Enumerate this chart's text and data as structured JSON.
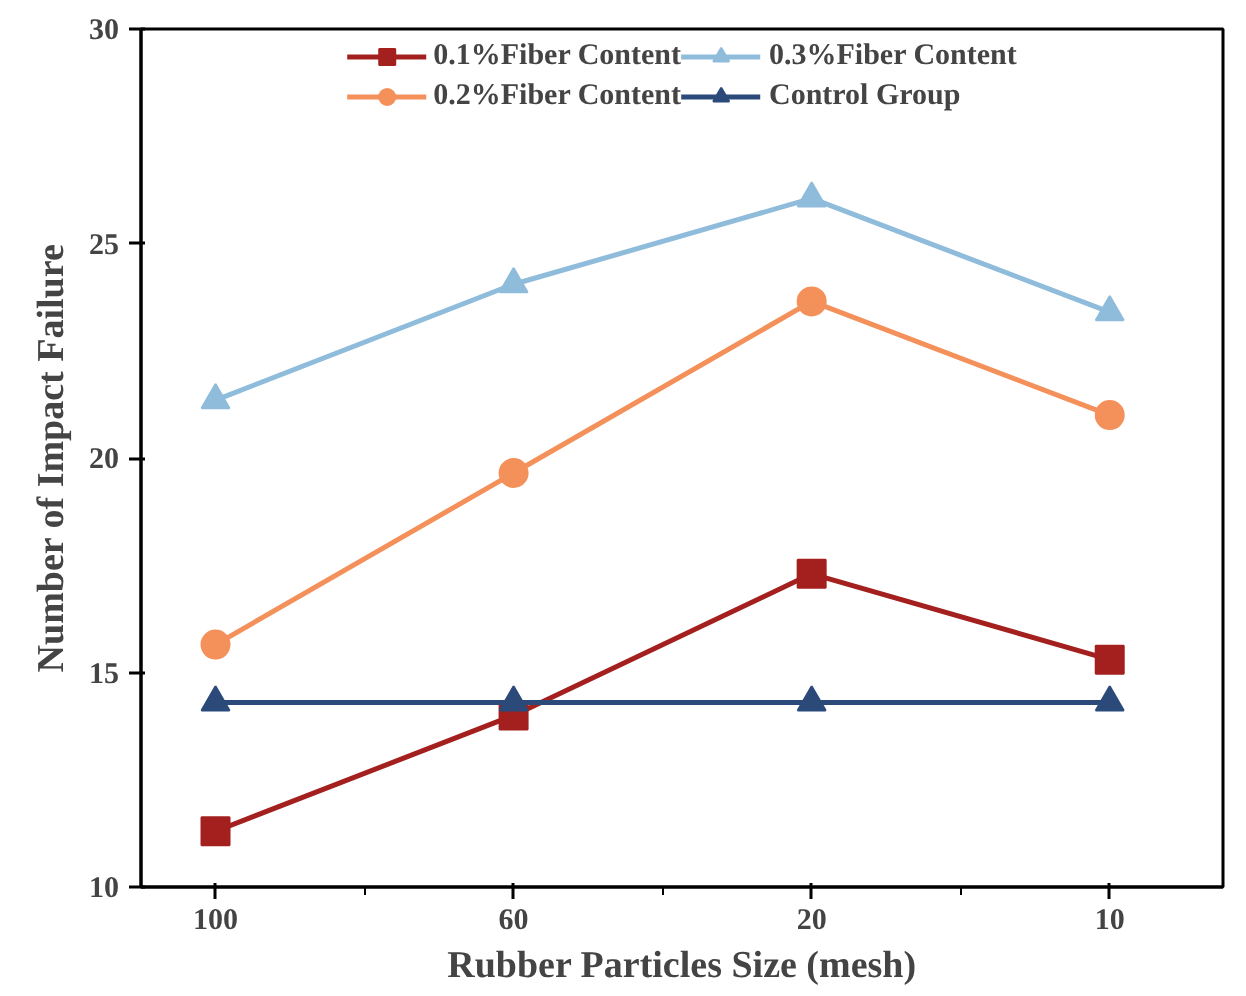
{
  "chart_data": {
    "type": "line",
    "xlabel": "Rubber Particles Size (mesh)",
    "ylabel": "Number of Impact Failure",
    "categories": [
      "100",
      "60",
      "20",
      "10"
    ],
    "series": [
      {
        "name": "0.1%Fiber Content",
        "color": "#a3201f",
        "marker": "square",
        "values": [
          11.3,
          14.0,
          17.3,
          15.3
        ]
      },
      {
        "name": "0.2%Fiber Content",
        "color": "#f4905a",
        "marker": "circle",
        "values": [
          15.65,
          19.65,
          23.65,
          21.0
        ]
      },
      {
        "name": "0.3%Fiber Content",
        "color": "#8fbcdb",
        "marker": "triangle",
        "values": [
          21.35,
          24.05,
          26.05,
          23.4
        ]
      },
      {
        "name": "Control Group",
        "color": "#2b4a7a",
        "marker": "triangle",
        "values": [
          14.3,
          14.3,
          14.3,
          14.3
        ]
      }
    ],
    "ylim": [
      10,
      30
    ],
    "yticks": [
      10,
      15,
      20,
      25,
      30
    ],
    "grid": false,
    "legend": "top",
    "line_style": "solid"
  }
}
